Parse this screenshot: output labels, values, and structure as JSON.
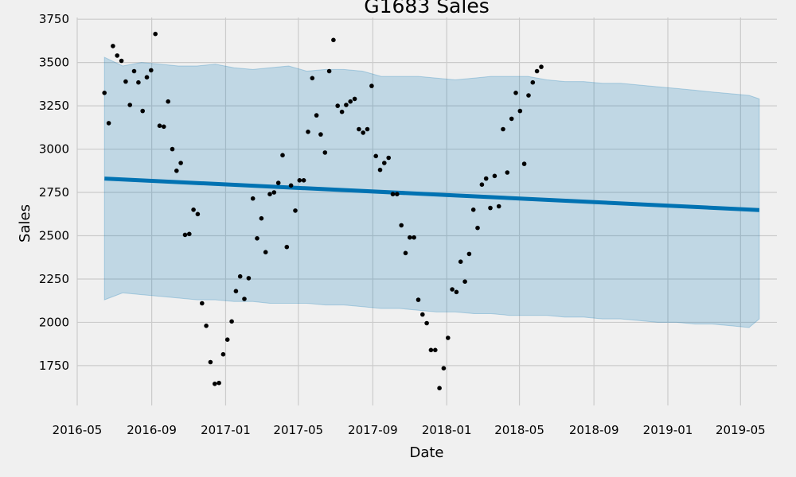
{
  "chart_data": {
    "type": "line",
    "title": "G1683 Sales",
    "xlabel": "Date",
    "ylabel": "Sales",
    "x_ticks": [
      "2016-05",
      "2016-09",
      "2017-01",
      "2017-05",
      "2017-09",
      "2018-01",
      "2018-05",
      "2018-09",
      "2019-01",
      "2019-05"
    ],
    "y_ticks": [
      1750,
      2000,
      2250,
      2500,
      2750,
      3000,
      3250,
      3500,
      3750
    ],
    "xlim": [
      "2016-05-01",
      "2019-06-30"
    ],
    "ylim": [
      1520,
      3760
    ],
    "grid": true,
    "colors": {
      "background": "#f0f0f0",
      "grid": "#cbcbcb",
      "trend": "#0072b2",
      "band": "#0072b2",
      "points": "#000000"
    },
    "trend": {
      "x": [
        "2016-06-15",
        "2019-06-01"
      ],
      "y": [
        2830,
        2648
      ]
    },
    "uncertainty_band": {
      "x": [
        "2016-06-15",
        "2016-07-15",
        "2016-08-15",
        "2016-09-15",
        "2016-10-15",
        "2016-11-15",
        "2016-12-15",
        "2017-01-15",
        "2017-02-15",
        "2017-03-15",
        "2017-04-15",
        "2017-05-15",
        "2017-06-15",
        "2017-07-15",
        "2017-08-15",
        "2017-09-15",
        "2017-10-15",
        "2017-11-15",
        "2017-12-15",
        "2018-01-15",
        "2018-02-15",
        "2018-03-15",
        "2018-04-15",
        "2018-05-15",
        "2018-06-15",
        "2018-07-15",
        "2018-08-15",
        "2018-09-15",
        "2018-10-15",
        "2018-11-15",
        "2018-12-15",
        "2019-01-15",
        "2019-02-15",
        "2019-03-15",
        "2019-04-15",
        "2019-05-15",
        "2019-06-01"
      ],
      "upper": [
        3530,
        3480,
        3500,
        3490,
        3480,
        3480,
        3490,
        3470,
        3460,
        3470,
        3480,
        3450,
        3460,
        3460,
        3450,
        3420,
        3420,
        3420,
        3410,
        3400,
        3410,
        3420,
        3420,
        3420,
        3400,
        3390,
        3390,
        3380,
        3380,
        3370,
        3360,
        3350,
        3340,
        3330,
        3320,
        3310,
        3290
      ],
      "lower": [
        2130,
        2170,
        2160,
        2150,
        2140,
        2130,
        2130,
        2120,
        2120,
        2110,
        2110,
        2110,
        2100,
        2100,
        2090,
        2080,
        2080,
        2070,
        2060,
        2060,
        2050,
        2050,
        2040,
        2040,
        2040,
        2030,
        2030,
        2020,
        2020,
        2010,
        2000,
        2000,
        1990,
        1990,
        1980,
        1970,
        2020
      ]
    },
    "series": [
      {
        "x": [
          "2016-06-15",
          "2016-06-22",
          "2016-06-29",
          "2016-07-06",
          "2016-07-13",
          "2016-07-20",
          "2016-07-27",
          "2016-08-03",
          "2016-08-10",
          "2016-08-17",
          "2016-08-24",
          "2016-08-31",
          "2016-09-07",
          "2016-09-14",
          "2016-09-21",
          "2016-09-28",
          "2016-10-05",
          "2016-10-12",
          "2016-10-19",
          "2016-10-26",
          "2016-11-02",
          "2016-11-09",
          "2016-11-16",
          "2016-11-23",
          "2016-11-30",
          "2016-12-07",
          "2016-12-14",
          "2016-12-21",
          "2016-12-28",
          "2017-01-04",
          "2017-01-11",
          "2017-01-18",
          "2017-01-25",
          "2017-02-01",
          "2017-02-08",
          "2017-02-15",
          "2017-02-22",
          "2017-03-01",
          "2017-03-08",
          "2017-03-15",
          "2017-03-22",
          "2017-03-29",
          "2017-04-05",
          "2017-04-12",
          "2017-04-19",
          "2017-04-26",
          "2017-05-03",
          "2017-05-10",
          "2017-05-17",
          "2017-05-24",
          "2017-05-31",
          "2017-06-07",
          "2017-06-14",
          "2017-06-21",
          "2017-06-28",
          "2017-07-05",
          "2017-07-12",
          "2017-07-19",
          "2017-07-26",
          "2017-08-02",
          "2017-08-09",
          "2017-08-16",
          "2017-08-23",
          "2017-08-30",
          "2017-09-06",
          "2017-09-13",
          "2017-09-20",
          "2017-09-27",
          "2017-10-04",
          "2017-10-11",
          "2017-10-18",
          "2017-10-25",
          "2017-11-01",
          "2017-11-08",
          "2017-11-15",
          "2017-11-22",
          "2017-11-29",
          "2017-12-06",
          "2017-12-13",
          "2017-12-20",
          "2017-12-27",
          "2018-01-03",
          "2018-01-10",
          "2018-01-17",
          "2018-01-24",
          "2018-01-31",
          "2018-02-07",
          "2018-02-14",
          "2018-02-21",
          "2018-02-28",
          "2018-03-07",
          "2018-03-14",
          "2018-03-21",
          "2018-03-28",
          "2018-04-04",
          "2018-04-11",
          "2018-04-18",
          "2018-04-25",
          "2018-05-02",
          "2018-05-09",
          "2018-05-16",
          "2018-05-23",
          "2018-05-30",
          "2018-06-06"
        ],
        "y": [
          3325,
          3150,
          3595,
          3540,
          3510,
          3390,
          3255,
          3450,
          3385,
          3220,
          3415,
          3455,
          3665,
          3135,
          3130,
          3275,
          3000,
          2875,
          2920,
          2505,
          2510,
          2650,
          2625,
          2110,
          1980,
          1770,
          1645,
          1650,
          1815,
          1900,
          2005,
          2180,
          2265,
          2135,
          2255,
          2715,
          2485,
          2600,
          2405,
          2740,
          2750,
          2805,
          2965,
          2435,
          2790,
          2645,
          2820,
          2820,
          3100,
          3410,
          3195,
          3085,
          2980,
          3450,
          3630,
          3250,
          3215,
          3255,
          3275,
          3290,
          3115,
          3095,
          3115,
          3365,
          2960,
          2880,
          2920,
          2950,
          2740,
          2740,
          2560,
          2400,
          2490,
          2490,
          2130,
          2045,
          1995,
          1840,
          1840,
          1620,
          1735,
          1910,
          2190,
          2175,
          2350,
          2235,
          2395,
          2650,
          2545,
          2795,
          2830,
          2660,
          2845,
          2670,
          3115,
          2865,
          3175,
          3325,
          3220,
          2915,
          3310,
          3385,
          3450,
          3475
        ]
      }
    ]
  }
}
